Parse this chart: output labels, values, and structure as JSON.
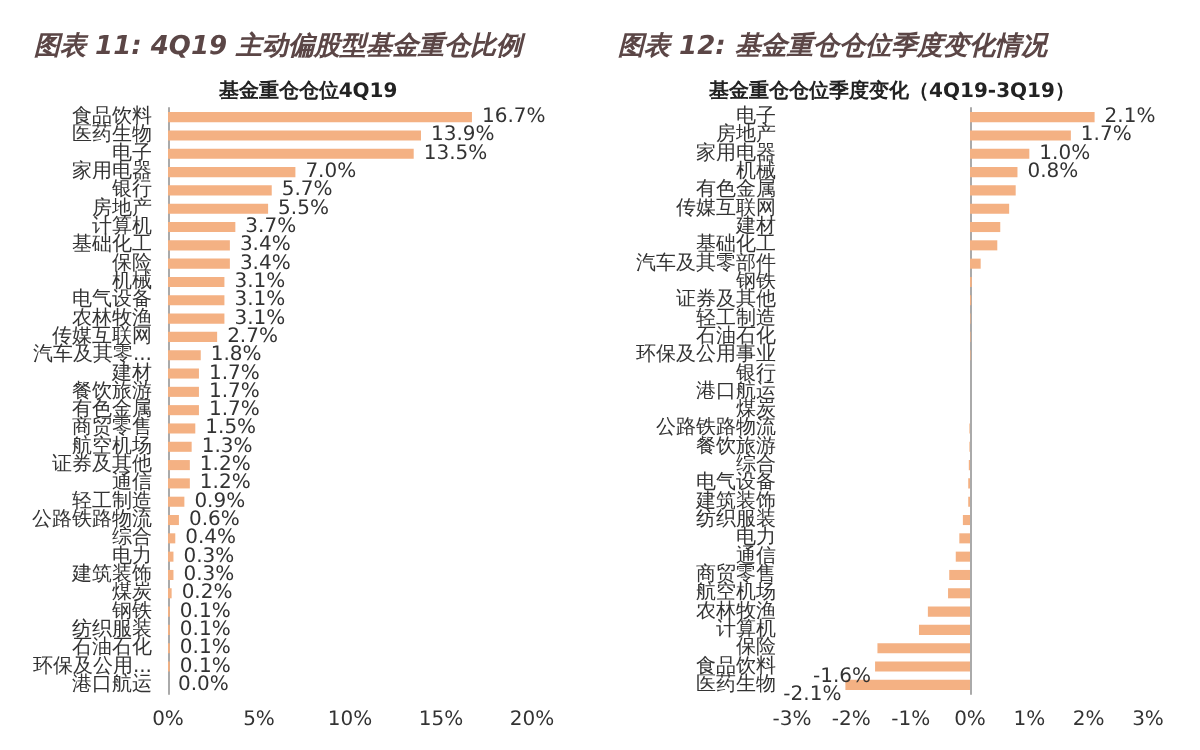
{
  "chart_data": [
    {
      "type": "bar",
      "orientation": "horizontal",
      "title": "图表 11: 4Q19 主动偏股型基金重仓比例",
      "subtitle": "基金重仓仓位4Q19",
      "categories": [
        "食品饮料",
        "医药生物",
        "电子",
        "家用电器",
        "银行",
        "房地产",
        "计算机",
        "基础化工",
        "保险",
        "机械",
        "电气设备",
        "农林牧渔",
        "传媒互联网",
        "汽车及其零...",
        "建材",
        "餐饮旅游",
        "有色金属",
        "商贸零售",
        "航空机场",
        "证券及其他",
        "通信",
        "轻工制造",
        "公路铁路物流",
        "综合",
        "电力",
        "建筑装饰",
        "煤炭",
        "钢铁",
        "纺织服装",
        "石油石化",
        "环保及公用...",
        "港口航运"
      ],
      "values": [
        16.7,
        13.9,
        13.5,
        7.0,
        5.7,
        5.5,
        3.7,
        3.4,
        3.4,
        3.1,
        3.1,
        3.1,
        2.7,
        1.8,
        1.7,
        1.7,
        1.7,
        1.5,
        1.3,
        1.2,
        1.2,
        0.9,
        0.6,
        0.4,
        0.3,
        0.3,
        0.2,
        0.1,
        0.1,
        0.1,
        0.1,
        0.0
      ],
      "value_labels": [
        "16.7%",
        "13.9%",
        "13.5%",
        "7.0%",
        "5.7%",
        "5.5%",
        "3.7%",
        "3.4%",
        "3.4%",
        "3.1%",
        "3.1%",
        "3.1%",
        "2.7%",
        "1.8%",
        "1.7%",
        "1.7%",
        "1.7%",
        "1.5%",
        "1.3%",
        "1.2%",
        "1.2%",
        "0.9%",
        "0.6%",
        "0.4%",
        "0.3%",
        "0.3%",
        "0.2%",
        "0.1%",
        "0.1%",
        "0.1%",
        "0.1%",
        "0.0%"
      ],
      "color": "#f4b183",
      "xlim": [
        0,
        20
      ],
      "xticks": [
        {
          "value": 0,
          "label": "0%"
        },
        {
          "value": 5,
          "label": "5%"
        },
        {
          "value": 10,
          "label": "10%"
        },
        {
          "value": 15,
          "label": "15%"
        },
        {
          "value": 20,
          "label": "20%"
        }
      ]
    },
    {
      "type": "bar",
      "orientation": "horizontal",
      "title": "图表 12: 基金重仓仓位季度变化情况",
      "subtitle": "基金重仓仓位季度变化（4Q19-3Q19）",
      "categories": [
        "电子",
        "房地产",
        "家用电器",
        "机械",
        "有色金属",
        "传媒互联网",
        "建材",
        "基础化工",
        "汽车及其零部件",
        "钢铁",
        "证券及其他",
        "轻工制造",
        "石油石化",
        "环保及公用事业",
        "银行",
        "港口航运",
        "煤炭",
        "公路铁路物流",
        "餐饮旅游",
        "综合",
        "电气设备",
        "建筑装饰",
        "纺织服装",
        "电力",
        "通信",
        "商贸零售",
        "航空机场",
        "农林牧渔",
        "计算机",
        "保险",
        "食品饮料",
        "医药生物"
      ],
      "values": [
        2.1,
        1.7,
        1.0,
        0.8,
        0.77,
        0.66,
        0.51,
        0.46,
        0.18,
        0.03,
        0.02,
        0.01,
        0.01,
        0.01,
        0,
        0,
        0,
        -0.01,
        -0.01,
        -0.02,
        -0.03,
        -0.03,
        -0.12,
        -0.18,
        -0.24,
        -0.35,
        -0.37,
        -0.71,
        -0.86,
        -1.56,
        -1.6,
        -2.1
      ],
      "value_labels": [
        "2.1%",
        "1.7%",
        "1.0%",
        "0.8%",
        null,
        null,
        null,
        null,
        null,
        null,
        null,
        null,
        null,
        null,
        null,
        null,
        null,
        null,
        null,
        null,
        null,
        null,
        null,
        null,
        null,
        null,
        null,
        null,
        null,
        null,
        "-1.6%",
        "-2.1%"
      ],
      "color": "#f4b183",
      "xlim": [
        -3,
        3
      ],
      "xticks": [
        {
          "value": -3,
          "label": "-3%"
        },
        {
          "value": -2,
          "label": "-2%"
        },
        {
          "value": -1,
          "label": "-1%"
        },
        {
          "value": 0,
          "label": "0%"
        },
        {
          "value": 1,
          "label": "1%"
        },
        {
          "value": 2,
          "label": "2%"
        },
        {
          "value": 3,
          "label": "3%"
        }
      ]
    }
  ]
}
